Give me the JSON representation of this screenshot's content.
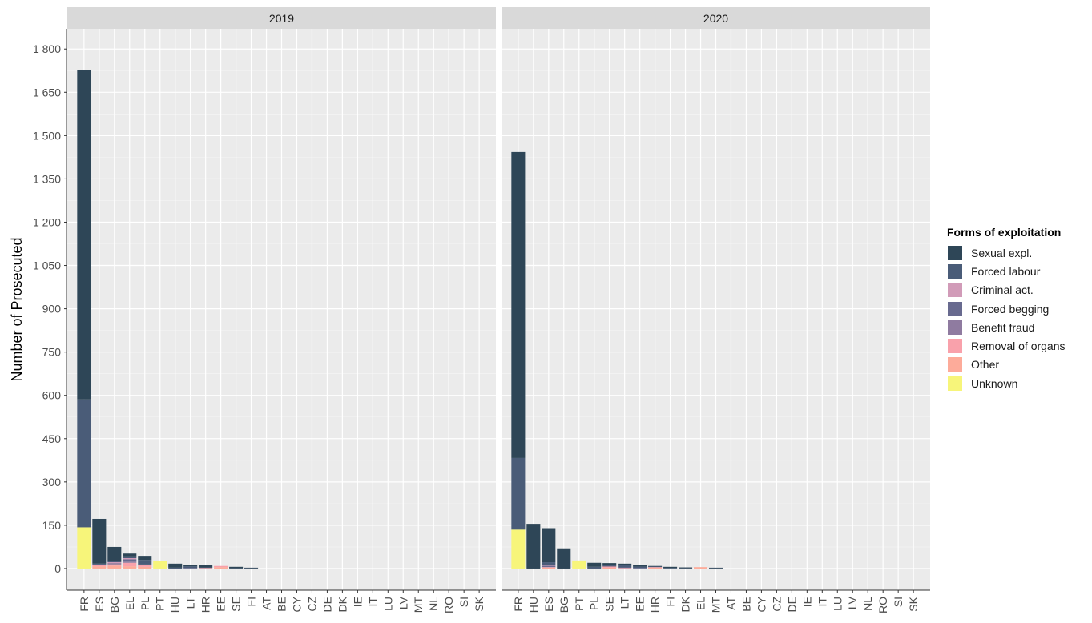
{
  "chart_data": {
    "type": "bar",
    "stacked": true,
    "ylabel": "Number of Prosecuted",
    "xlabel": "",
    "ylim": [
      -75,
      1870
    ],
    "yticks": [
      0,
      150,
      300,
      450,
      600,
      750,
      900,
      1050,
      1200,
      1350,
      1500,
      1650,
      1800
    ],
    "ytick_labels": [
      "0",
      "150",
      "300",
      "450",
      "600",
      "750",
      "900",
      "1 050",
      "1 200",
      "1 350",
      "1 500",
      "1 650",
      "1 800"
    ],
    "grid": true,
    "legend": {
      "title": "Forms of exploitation",
      "placement": "right",
      "entries": [
        "Sexual expl.",
        "Forced labour",
        "Criminal act.",
        "Forced begging",
        "Benefit fraud",
        "Removal of organs",
        "Other",
        "Unknown"
      ],
      "colors": [
        "#2e4657",
        "#4a5c78",
        "#d19bb8",
        "#686a8f",
        "#8f7ba0",
        "#f9a1ab",
        "#fdab9a",
        "#f7f57a"
      ]
    },
    "stack_order_bottom_to_top": [
      "Unknown",
      "Other",
      "Removal of organs",
      "Benefit fraud",
      "Forced begging",
      "Criminal act.",
      "Forced labour",
      "Sexual expl."
    ],
    "panels": [
      {
        "title": "2019",
        "categories": [
          "FR",
          "ES",
          "BG",
          "EL",
          "PL",
          "PT",
          "HU",
          "LT",
          "HR",
          "EE",
          "SE",
          "FI",
          "AT",
          "BE",
          "CY",
          "CZ",
          "DE",
          "DK",
          "IE",
          "IT",
          "LU",
          "LV",
          "MT",
          "NL",
          "RO",
          "SI",
          "SK"
        ],
        "series": [
          {
            "name": "Sexual expl.",
            "values": [
              1140,
              155,
              48,
              10,
              14,
              0,
              14,
              4,
              7,
              0,
              5,
              2,
              0,
              0,
              0,
              0,
              0,
              0,
              0,
              0,
              0,
              0,
              0,
              0,
              0,
              0,
              0
            ]
          },
          {
            "name": "Forced labour",
            "values": [
              443,
              3,
              5,
              6,
              16,
              0,
              3,
              6,
              2,
              0,
              1,
              1,
              0,
              0,
              0,
              0,
              0,
              0,
              0,
              0,
              0,
              0,
              0,
              0,
              0,
              0,
              0
            ]
          },
          {
            "name": "Criminal act.",
            "values": [
              0,
              2,
              4,
              4,
              2,
              0,
              0,
              0,
              0,
              0,
              0,
              0,
              0,
              0,
              0,
              0,
              0,
              0,
              0,
              0,
              0,
              0,
              0,
              0,
              0,
              0,
              0
            ]
          },
          {
            "name": "Forced begging",
            "values": [
              0,
              0,
              3,
              8,
              0,
              0,
              0,
              2,
              0,
              0,
              0,
              0,
              0,
              0,
              0,
              0,
              0,
              0,
              0,
              0,
              0,
              0,
              0,
              0,
              0,
              0,
              0
            ]
          },
          {
            "name": "Benefit fraud",
            "values": [
              0,
              0,
              0,
              4,
              0,
              0,
              0,
              0,
              0,
              0,
              0,
              0,
              0,
              0,
              0,
              0,
              0,
              0,
              0,
              0,
              0,
              0,
              0,
              0,
              0,
              0,
              0
            ]
          },
          {
            "name": "Removal of organs",
            "values": [
              0,
              4,
              5,
              12,
              6,
              0,
              0,
              0,
              2,
              4,
              0,
              0,
              0,
              0,
              0,
              0,
              0,
              0,
              0,
              0,
              0,
              0,
              0,
              0,
              0,
              0,
              0
            ]
          },
          {
            "name": "Other",
            "values": [
              0,
              8,
              10,
              8,
              6,
              0,
              0,
              0,
              0,
              5,
              0,
              0,
              0,
              0,
              0,
              0,
              0,
              0,
              0,
              0,
              0,
              0,
              0,
              0,
              0,
              0,
              0
            ]
          },
          {
            "name": "Unknown",
            "values": [
              143,
              0,
              0,
              0,
              0,
              27,
              0,
              0,
              0,
              0,
              0,
              0,
              0,
              0,
              0,
              0,
              0,
              0,
              0,
              0,
              0,
              0,
              0,
              0,
              0,
              0,
              0
            ]
          }
        ]
      },
      {
        "title": "2020",
        "categories": [
          "FR",
          "HU",
          "ES",
          "BG",
          "PT",
          "PL",
          "SE",
          "LT",
          "EE",
          "HR",
          "FI",
          "DK",
          "EL",
          "MT",
          "AT",
          "BE",
          "CY",
          "CZ",
          "DE",
          "IE",
          "IT",
          "LU",
          "LV",
          "NL",
          "RO",
          "SI",
          "SK"
        ],
        "series": [
          {
            "name": "Sexual expl.",
            "values": [
              1060,
              155,
              118,
              70,
              0,
              14,
              8,
              6,
              4,
              2,
              4,
              3,
              0,
              2,
              0,
              0,
              0,
              0,
              0,
              0,
              0,
              0,
              0,
              0,
              0,
              0,
              0
            ]
          },
          {
            "name": "Forced labour",
            "values": [
              248,
              0,
              10,
              0,
              0,
              6,
              4,
              7,
              5,
              2,
              2,
              1,
              0,
              1,
              0,
              0,
              0,
              0,
              0,
              0,
              0,
              0,
              0,
              0,
              0,
              0,
              0
            ]
          },
          {
            "name": "Criminal act.",
            "values": [
              0,
              0,
              2,
              0,
              0,
              0,
              0,
              0,
              0,
              0,
              0,
              0,
              0,
              0,
              0,
              0,
              0,
              0,
              0,
              0,
              0,
              0,
              0,
              0,
              0,
              0,
              0
            ]
          },
          {
            "name": "Forced begging",
            "values": [
              0,
              0,
              5,
              0,
              0,
              0,
              0,
              2,
              2,
              0,
              0,
              0,
              0,
              0,
              0,
              0,
              0,
              0,
              0,
              0,
              0,
              0,
              0,
              0,
              0,
              0,
              0
            ]
          },
          {
            "name": "Benefit fraud",
            "values": [
              0,
              0,
              0,
              0,
              0,
              0,
              0,
              0,
              0,
              0,
              0,
              0,
              0,
              0,
              0,
              0,
              0,
              0,
              0,
              0,
              0,
              0,
              0,
              0,
              0,
              0,
              0
            ]
          },
          {
            "name": "Removal of organs",
            "values": [
              0,
              0,
              2,
              0,
              0,
              0,
              4,
              2,
              0,
              2,
              0,
              0,
              0,
              0,
              0,
              0,
              0,
              0,
              0,
              0,
              0,
              0,
              0,
              0,
              0,
              0,
              0
            ]
          },
          {
            "name": "Other",
            "values": [
              0,
              0,
              3,
              0,
              0,
              0,
              3,
              0,
              0,
              3,
              0,
              0,
              5,
              0,
              0,
              0,
              0,
              0,
              0,
              0,
              0,
              0,
              0,
              0,
              0,
              0,
              0
            ]
          },
          {
            "name": "Unknown",
            "values": [
              135,
              0,
              0,
              0,
              28,
              0,
              0,
              0,
              0,
              0,
              0,
              0,
              0,
              0,
              0,
              0,
              0,
              0,
              0,
              0,
              0,
              0,
              0,
              0,
              0,
              0,
              0
            ]
          }
        ]
      }
    ]
  }
}
